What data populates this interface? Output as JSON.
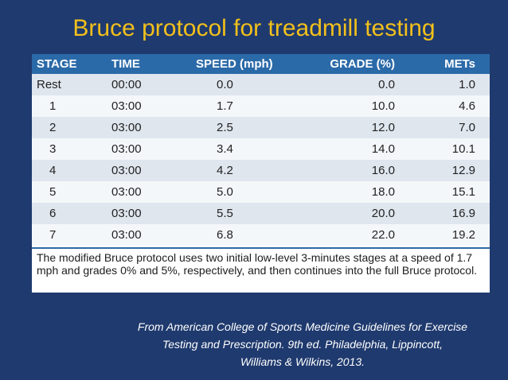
{
  "slide": {
    "title": "Bruce protocol for treadmill testing",
    "citation_line1": "From American College of Sports Medicine Guidelines for Exercise",
    "citation_line2": "Testing and Prescription. 9th ed. Philadelphia, Lippincott,",
    "citation_line3": "Williams & Wilkins, 2013."
  },
  "table": {
    "headers": [
      "STAGE",
      "TIME",
      "SPEED (mph)",
      "GRADE (%)",
      "METs"
    ],
    "rows": [
      [
        "Rest",
        "00:00",
        "0.0",
        "0.0",
        "1.0"
      ],
      [
        "1",
        "03:00",
        "1.7",
        "10.0",
        "4.6"
      ],
      [
        "2",
        "03:00",
        "2.5",
        "12.0",
        "7.0"
      ],
      [
        "3",
        "03:00",
        "3.4",
        "14.0",
        "10.1"
      ],
      [
        "4",
        "03:00",
        "4.2",
        "16.0",
        "12.9"
      ],
      [
        "5",
        "03:00",
        "5.0",
        "18.0",
        "15.1"
      ],
      [
        "6",
        "03:00",
        "5.5",
        "20.0",
        "16.9"
      ],
      [
        "7",
        "03:00",
        "6.8",
        "22.0",
        "19.2"
      ]
    ],
    "note": "The modified Bruce protocol uses two initial low-level 3-minutes stages at a speed of 1.7 mph and grades 0% and 5%, respectively, and then continues into the full Bruce protocol."
  },
  "colors": {
    "background": "#1f3a6e",
    "title": "#f2c01c",
    "header": "#2b6aa8"
  }
}
